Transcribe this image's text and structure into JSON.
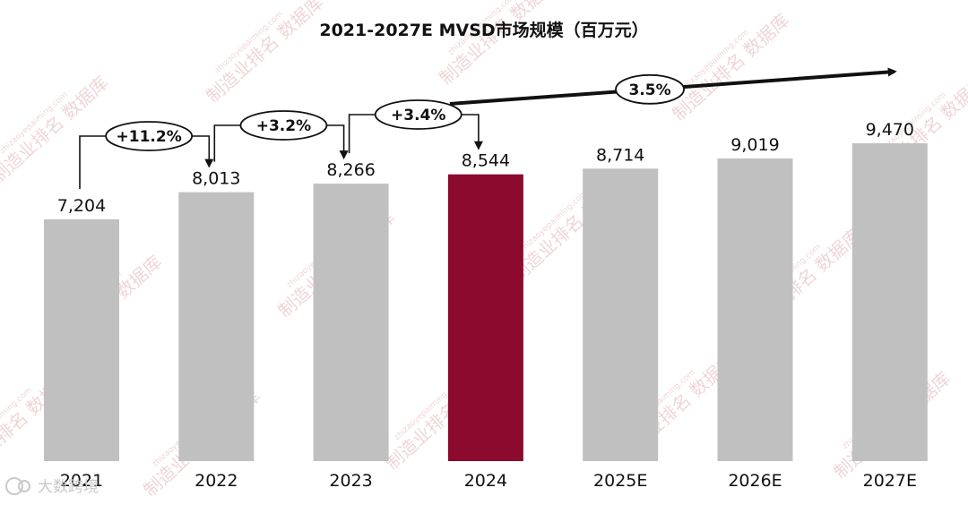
{
  "chart_data": {
    "type": "bar",
    "title": "2021-2027E MVSD市场规模（百万元）",
    "categories": [
      "2021",
      "2022",
      "2023",
      "2024",
      "2025E",
      "2026E",
      "2027E"
    ],
    "values": [
      7204,
      8013,
      8266,
      8544,
      8714,
      9019,
      9470
    ],
    "value_labels": [
      "7,204",
      "8,013",
      "8,266",
      "8,544",
      "8,714",
      "9,019",
      "9,470"
    ],
    "highlight_index": 3,
    "colors": {
      "bar": "#c0c0c0",
      "highlight": "#8b0a2e",
      "text": "#111111"
    },
    "growth_annotations": [
      {
        "from": "2021",
        "to": "2022",
        "label": "+11.2%"
      },
      {
        "from": "2022",
        "to": "2023",
        "label": "+3.2%"
      },
      {
        "from": "2023",
        "to": "2024",
        "label": "+3.4%"
      }
    ],
    "cagr_annotation": {
      "from": "2024",
      "to": "2027E",
      "label": "3.5%"
    },
    "grid": false,
    "legend": "none"
  },
  "watermark": {
    "text": "制造业排名 数据库",
    "url": "zhizaoyepaiming.com"
  },
  "brand": {
    "text": "大数跨境"
  }
}
